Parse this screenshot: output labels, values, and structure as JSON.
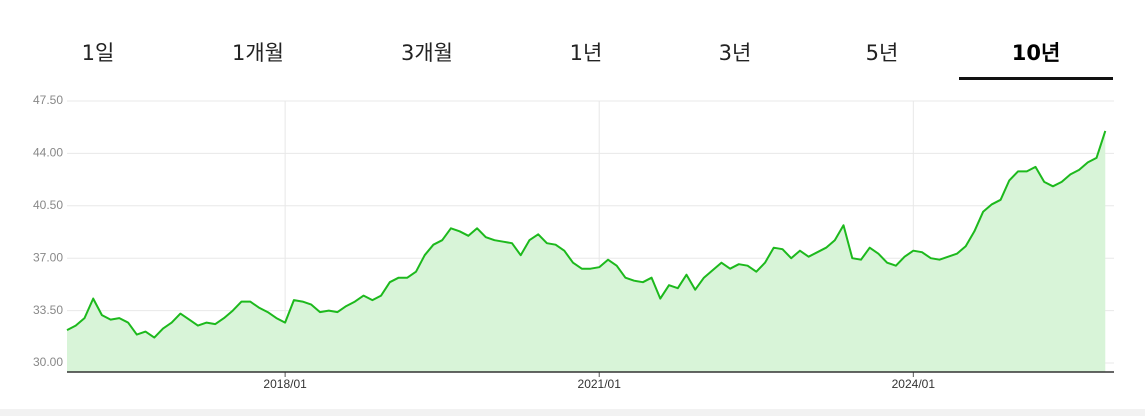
{
  "tabs": [
    "1일",
    "1개월",
    "3개월",
    "1년",
    "3년",
    "5년",
    "10년"
  ],
  "selected_tab": 6,
  "chart_data": {
    "type": "area",
    "color": "#1db91d",
    "fill": "#d8f4d8",
    "grid": true,
    "xlim": [
      "2015/12",
      "2025/12"
    ],
    "xticks": [
      "2018/01",
      "2021/01",
      "2024/01"
    ],
    "ylim": [
      29.4,
      47.5
    ],
    "yticks": [
      {
        "value": 30,
        "label": "30.00"
      },
      {
        "value": 33.5,
        "label": "33.50"
      },
      {
        "value": 37,
        "label": "37.00"
      },
      {
        "value": 40.5,
        "label": "40.50"
      },
      {
        "value": 44,
        "label": "44.00"
      },
      {
        "value": 47.5,
        "label": "47.50"
      }
    ],
    "x": [
      "2015/12",
      "2016/01",
      "2016/02",
      "2016/03",
      "2016/04",
      "2016/05",
      "2016/06",
      "2016/07",
      "2016/08",
      "2016/09",
      "2016/10",
      "2016/11",
      "2016/12",
      "2017/01",
      "2017/02",
      "2017/03",
      "2017/04",
      "2017/05",
      "2017/06",
      "2017/07",
      "2017/08",
      "2017/09",
      "2017/10",
      "2017/11",
      "2017/12",
      "2018/01",
      "2018/02",
      "2018/03",
      "2018/04",
      "2018/05",
      "2018/06",
      "2018/07",
      "2018/08",
      "2018/09",
      "2018/10",
      "2018/11",
      "2018/12",
      "2019/01",
      "2019/02",
      "2019/03",
      "2019/04",
      "2019/05",
      "2019/06",
      "2019/07",
      "2019/08",
      "2019/09",
      "2019/10",
      "2019/11",
      "2019/12",
      "2020/01",
      "2020/02",
      "2020/03",
      "2020/04",
      "2020/05",
      "2020/06",
      "2020/07",
      "2020/08",
      "2020/09",
      "2020/10",
      "2020/11",
      "2020/12",
      "2021/01",
      "2021/02",
      "2021/03",
      "2021/04",
      "2021/05",
      "2021/06",
      "2021/07",
      "2021/08",
      "2021/09",
      "2021/10",
      "2021/11",
      "2021/12",
      "2022/01",
      "2022/02",
      "2022/03",
      "2022/04",
      "2022/05",
      "2022/06",
      "2022/07",
      "2022/08",
      "2022/09",
      "2022/10",
      "2022/11",
      "2022/12",
      "2023/01",
      "2023/02",
      "2023/03",
      "2023/04",
      "2023/05",
      "2023/06",
      "2023/07",
      "2023/08",
      "2023/09",
      "2023/10",
      "2023/11",
      "2023/12",
      "2024/01",
      "2024/02",
      "2024/03",
      "2024/04",
      "2024/05",
      "2024/06",
      "2024/07",
      "2024/08",
      "2024/09",
      "2024/10",
      "2024/11",
      "2024/12",
      "2025/01",
      "2025/02",
      "2025/03",
      "2025/04",
      "2025/05",
      "2025/06",
      "2025/07",
      "2025/08",
      "2025/09",
      "2025/10",
      "2025/11"
    ],
    "values": [
      32.2,
      32.5,
      33.0,
      34.3,
      33.2,
      32.9,
      33.0,
      32.7,
      31.9,
      32.1,
      31.7,
      32.3,
      32.7,
      33.3,
      32.9,
      32.5,
      32.7,
      32.6,
      33.0,
      33.5,
      34.1,
      34.1,
      33.7,
      33.4,
      33.0,
      32.7,
      34.2,
      34.1,
      33.9,
      33.4,
      33.5,
      33.4,
      33.8,
      34.1,
      34.5,
      34.2,
      34.5,
      35.4,
      35.7,
      35.7,
      36.1,
      37.2,
      37.9,
      38.2,
      39.0,
      38.8,
      38.5,
      39.0,
      38.4,
      38.2,
      38.1,
      38.0,
      37.2,
      38.2,
      38.6,
      38.0,
      37.9,
      37.5,
      36.7,
      36.3,
      36.3,
      36.4,
      36.9,
      36.5,
      35.7,
      35.5,
      35.4,
      35.7,
      34.3,
      35.2,
      35.0,
      35.9,
      34.9,
      35.7,
      36.2,
      36.7,
      36.3,
      36.6,
      36.5,
      36.1,
      36.7,
      37.7,
      37.6,
      37.0,
      37.5,
      37.1,
      37.4,
      37.7,
      38.2,
      39.2,
      37.0,
      36.9,
      37.7,
      37.3,
      36.7,
      36.5,
      37.1,
      37.5,
      37.4,
      37.0,
      36.9,
      37.1,
      37.3,
      37.8,
      38.8,
      40.1,
      40.6,
      40.9,
      42.2,
      42.8,
      42.8,
      43.1,
      42.1,
      41.8,
      42.1,
      42.6,
      42.9,
      43.4,
      43.7,
      45.5
    ]
  }
}
